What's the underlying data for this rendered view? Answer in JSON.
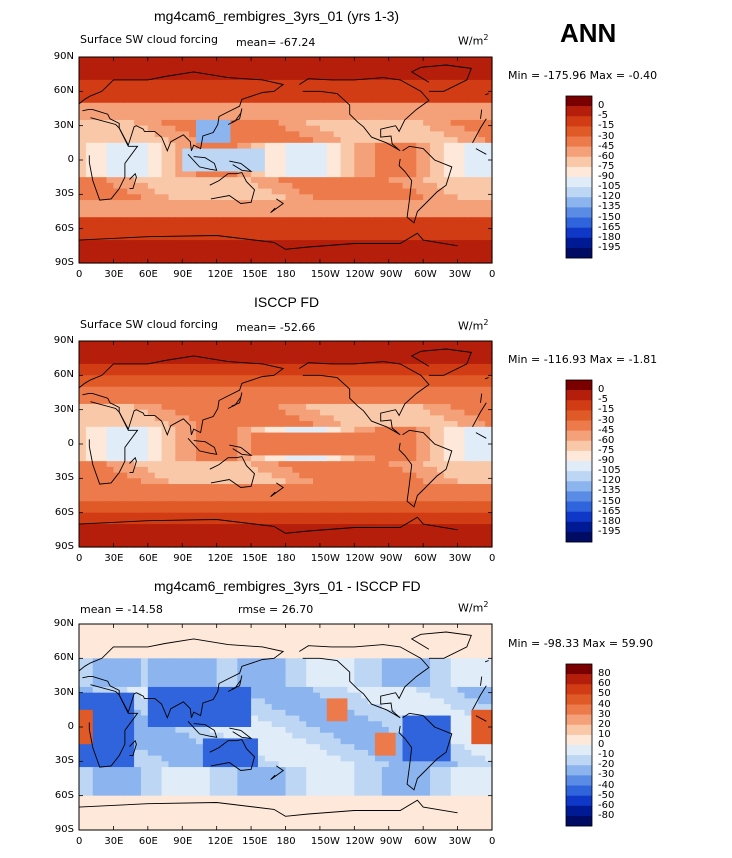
{
  "season": "ANN",
  "panels": [
    {
      "title": "mg4cam6_rembigres_3yrs_01 (yrs 1-3)",
      "left_label": "Surface SW cloud forcing",
      "stat_label": "mean= -67.24",
      "units": "W/m",
      "units_sup": "2",
      "minmax": "Min = -175.96 Max =  -0.40",
      "colorbar_labels": [
        "0",
        "-5",
        "-15",
        "-30",
        "-45",
        "-60",
        "-75",
        "-90",
        "-105",
        "-120",
        "-135",
        "-150",
        "-165",
        "-180",
        "-195"
      ]
    },
    {
      "title": "ISCCP FD",
      "left_label": "Surface SW cloud forcing",
      "stat_label": "mean= -52.66",
      "units": "W/m",
      "units_sup": "2",
      "minmax": "Min = -116.93 Max =  -1.81",
      "colorbar_labels": [
        "0",
        "-5",
        "-15",
        "-30",
        "-45",
        "-60",
        "-75",
        "-90",
        "-105",
        "-120",
        "-135",
        "-150",
        "-165",
        "-180",
        "-195"
      ]
    },
    {
      "title": "mg4cam6_rembigres_3yrs_01 - ISCCP FD",
      "left_label": "mean = -14.58",
      "stat_label": "rmse =  26.70",
      "units": "W/m",
      "units_sup": "2",
      "minmax": "Min = -98.33 Max =  59.90",
      "colorbar_labels": [
        "80",
        "60",
        "50",
        "40",
        "30",
        "20",
        "10",
        "0",
        "-10",
        "-20",
        "-30",
        "-40",
        "-50",
        "-60",
        "-80"
      ]
    }
  ],
  "chart_data": {
    "type": "heatmap",
    "projection": "cylindrical equidistant map",
    "lat_ticks": [
      "90N",
      "60N",
      "30N",
      "0",
      "30S",
      "60S",
      "90S"
    ],
    "lon_ticks": [
      "0",
      "30E",
      "60E",
      "90E",
      "120E",
      "150E",
      "180",
      "150W",
      "120W",
      "90W",
      "60W",
      "30W",
      "0"
    ],
    "colors": {
      "sw_scale": [
        "#7a0000",
        "#b41e0a",
        "#d23c14",
        "#e05a28",
        "#ec7a4a",
        "#f4a078",
        "#f9c8a8",
        "#fde8da",
        "#e0ecf8",
        "#bcd6f4",
        "#8cb4ee",
        "#5a8ce6",
        "#3064dc",
        "#1038c8",
        "#001a96",
        "#000c64"
      ],
      "diff_scale": [
        "#7a0000",
        "#b41e0a",
        "#d23c14",
        "#e05a28",
        "#ec7a4a",
        "#f4a078",
        "#f9c8a8",
        "#fde8da",
        "#e0ecf8",
        "#bcd6f4",
        "#8cb4ee",
        "#5a8ce6",
        "#3064dc",
        "#1038c8",
        "#001a96",
        "#000c64"
      ]
    }
  }
}
